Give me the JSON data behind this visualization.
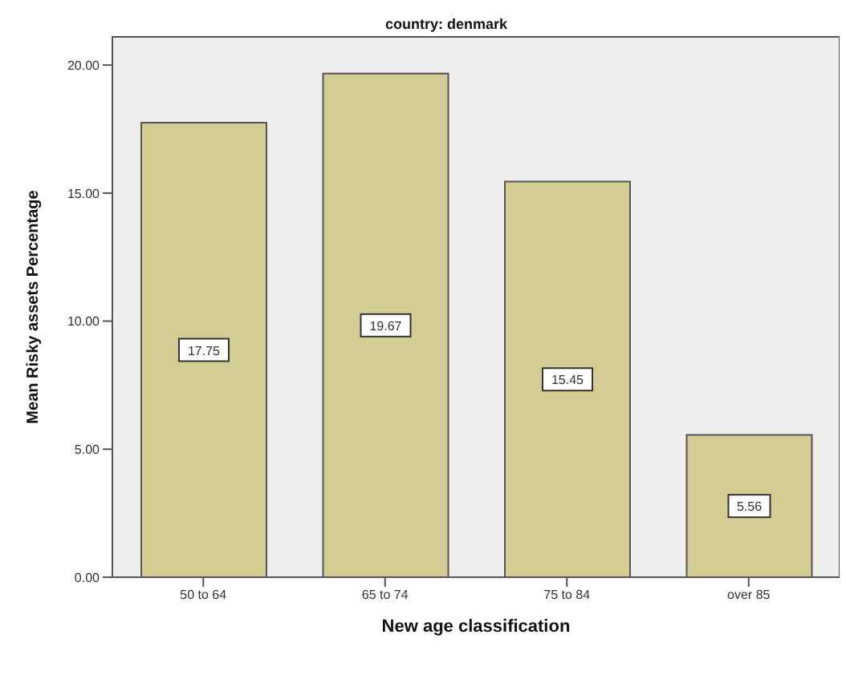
{
  "chart_data": {
    "type": "bar",
    "title": "country: denmark",
    "xlabel": "New age classification",
    "ylabel": "Mean Risky assets Percentage",
    "categories": [
      "50 to 64",
      "65 to 74",
      "75 to 84",
      "over 85"
    ],
    "values": [
      17.75,
      19.67,
      15.45,
      5.56
    ],
    "color": "#d3cd93",
    "ylim": [
      0,
      21.1
    ],
    "yticks": [
      {
        "value": 0,
        "label": "0.00"
      },
      {
        "value": 5,
        "label": "5.00"
      },
      {
        "value": 10,
        "label": "10.00"
      },
      {
        "value": 15,
        "label": "15.00"
      },
      {
        "value": 20,
        "label": "20.00"
      }
    ],
    "data_labels": true
  }
}
